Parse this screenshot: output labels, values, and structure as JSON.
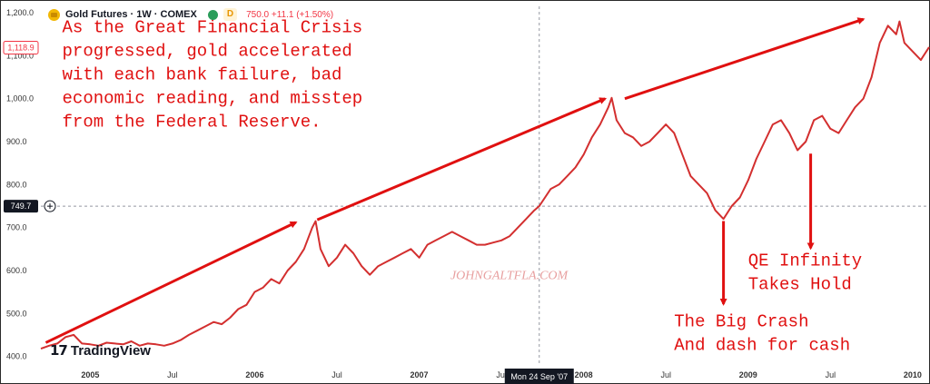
{
  "header": {
    "symbol": "Gold Futures · 1W · COMEX",
    "badge": "D",
    "price": "750.0 +11.1 (+1.50%)"
  },
  "brand": {
    "watermark": "TradingView"
  },
  "chart_data": {
    "type": "line",
    "title": "",
    "xlabel": "",
    "ylabel": "",
    "ylim": [
      378,
      1215
    ],
    "y_ticks": [
      400,
      500,
      600,
      700,
      800,
      900,
      1000,
      1100,
      1200
    ],
    "y_tick_labels": [
      "400.0",
      "500.0",
      "600.0",
      "700.0",
      "800.0",
      "900.0",
      "1,000.0",
      "1,100.0",
      "1,200.0"
    ],
    "xlim": [
      2004.7,
      2010.1
    ],
    "x_ticks": [
      {
        "x": 2005.0,
        "label": "2005"
      },
      {
        "x": 2005.5,
        "label": "Jul"
      },
      {
        "x": 2006.0,
        "label": "2006"
      },
      {
        "x": 2006.5,
        "label": "Jul"
      },
      {
        "x": 2007.0,
        "label": "2007"
      },
      {
        "x": 2007.5,
        "label": "Jul"
      },
      {
        "x": 2008.0,
        "label": "2008"
      },
      {
        "x": 2008.5,
        "label": "Jul"
      },
      {
        "x": 2009.0,
        "label": "2009"
      },
      {
        "x": 2009.5,
        "label": "Jul"
      },
      {
        "x": 2010.0,
        "label": "2010"
      }
    ],
    "crosshair": {
      "x": 2007.73,
      "y": 749.7,
      "x_label": "Mon 24 Sep '07",
      "y_label": "749.7"
    },
    "last_price_label": "1,118.9",
    "series": [
      {
        "color": "#d32f2f",
        "x": [
          2004.7,
          2004.75,
          2004.8,
          2004.85,
          2004.9,
          2004.95,
          2005.0,
          2005.05,
          2005.1,
          2005.15,
          2005.2,
          2005.25,
          2005.3,
          2005.35,
          2005.4,
          2005.45,
          2005.5,
          2005.55,
          2005.6,
          2005.65,
          2005.7,
          2005.75,
          2005.8,
          2005.85,
          2005.9,
          2005.95,
          2006.0,
          2006.05,
          2006.1,
          2006.15,
          2006.2,
          2006.25,
          2006.3,
          2006.35,
          2006.37,
          2006.4,
          2006.45,
          2006.5,
          2006.55,
          2006.6,
          2006.65,
          2006.7,
          2006.75,
          2006.8,
          2006.85,
          2006.9,
          2006.95,
          2007.0,
          2007.05,
          2007.1,
          2007.15,
          2007.2,
          2007.25,
          2007.3,
          2007.35,
          2007.4,
          2007.45,
          2007.5,
          2007.55,
          2007.6,
          2007.65,
          2007.7,
          2007.73,
          2007.8,
          2007.85,
          2007.9,
          2007.95,
          2008.0,
          2008.05,
          2008.1,
          2008.15,
          2008.17,
          2008.2,
          2008.25,
          2008.3,
          2008.35,
          2008.4,
          2008.45,
          2008.5,
          2008.55,
          2008.6,
          2008.65,
          2008.7,
          2008.75,
          2008.8,
          2008.85,
          2008.9,
          2008.95,
          2009.0,
          2009.05,
          2009.1,
          2009.15,
          2009.2,
          2009.25,
          2009.3,
          2009.35,
          2009.4,
          2009.45,
          2009.5,
          2009.55,
          2009.6,
          2009.65,
          2009.7,
          2009.75,
          2009.8,
          2009.85,
          2009.9,
          2009.92,
          2009.95,
          2010.0,
          2010.05,
          2010.1
        ],
        "values": [
          418,
          425,
          430,
          445,
          450,
          430,
          428,
          425,
          432,
          430,
          428,
          435,
          425,
          430,
          428,
          425,
          430,
          438,
          450,
          460,
          470,
          480,
          475,
          490,
          510,
          520,
          550,
          560,
          580,
          570,
          600,
          620,
          650,
          700,
          715,
          650,
          610,
          630,
          660,
          640,
          610,
          590,
          610,
          620,
          630,
          640,
          650,
          630,
          660,
          670,
          680,
          690,
          680,
          670,
          660,
          660,
          665,
          670,
          680,
          700,
          720,
          740,
          750,
          790,
          800,
          820,
          840,
          870,
          910,
          940,
          980,
          1002,
          950,
          920,
          910,
          890,
          900,
          920,
          940,
          920,
          870,
          820,
          800,
          780,
          740,
          720,
          750,
          770,
          810,
          860,
          900,
          940,
          950,
          920,
          880,
          900,
          950,
          960,
          930,
          920,
          950,
          980,
          1000,
          1050,
          1130,
          1170,
          1150,
          1180,
          1130,
          1110,
          1090,
          1120
        ]
      }
    ],
    "annotations": [
      {
        "text": "As the Great Financial Crisis\nprogressed, gold accelerated\nwith each bank failure, bad\neconomic reading, and misstep\nfrom the Federal Reserve.",
        "x": 2004.83,
        "y": 1155
      },
      {
        "text": "JOHNGALTFLA.COM",
        "x": 2007.19,
        "y": 580
      },
      {
        "text": "QE Infinity\nTakes Hold",
        "x": 2009.0,
        "y": 612
      },
      {
        "text": "The Big Crash\nAnd dash for cash",
        "x": 2008.55,
        "y": 470
      }
    ],
    "arrows": [
      {
        "from": [
          2004.73,
          432
        ],
        "to": [
          2006.25,
          712
        ]
      },
      {
        "from": [
          2006.38,
          718
        ],
        "to": [
          2008.13,
          1000
        ]
      },
      {
        "from": [
          2008.25,
          1000
        ],
        "to": [
          2009.7,
          1185
        ]
      },
      {
        "from": [
          2008.85,
          715
        ],
        "to": [
          2008.85,
          522
        ]
      },
      {
        "from": [
          2009.38,
          872
        ],
        "to": [
          2009.38,
          652
        ]
      }
    ]
  }
}
